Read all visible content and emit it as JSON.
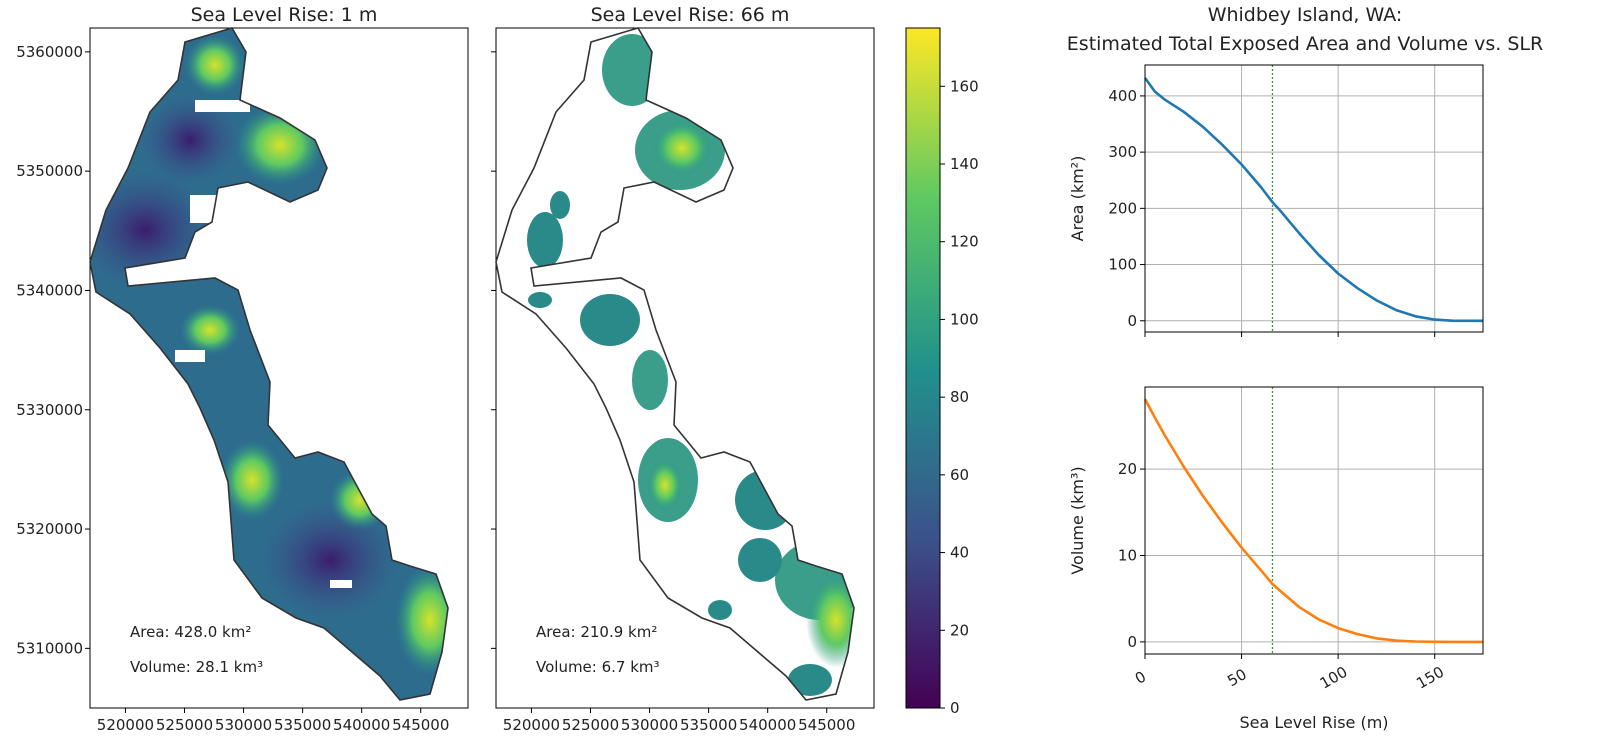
{
  "figure": {
    "map_left": {
      "title": "Sea Level Rise: 1 m",
      "annotation_area": "Area: 428.0 km²",
      "annotation_volume": "Volume: 28.1 km³"
    },
    "map_right": {
      "title": "Sea Level Rise: 66 m",
      "annotation_area": "Area: 210.9 km²",
      "annotation_volume": "Volume: 6.7 km³"
    },
    "map_x_ticks": [
      "520000",
      "525000",
      "530000",
      "535000",
      "540000",
      "545000"
    ],
    "map_y_ticks": [
      "5310000",
      "5320000",
      "5330000",
      "5340000",
      "5350000",
      "5360000"
    ],
    "colorbar": {
      "ticks": [
        "0",
        "20",
        "40",
        "60",
        "80",
        "100",
        "120",
        "140",
        "160"
      ],
      "min": 0,
      "max": 175,
      "colormap": "viridis",
      "colors": [
        "#440154",
        "#3b528b",
        "#21918c",
        "#5ec962",
        "#fde725"
      ]
    },
    "right_title_line1": "Whidbey Island, WA:",
    "right_title_line2": "Estimated Total Exposed Area and Volume vs. SLR"
  },
  "chart_data": [
    {
      "type": "line",
      "x": [
        0,
        5,
        10,
        20,
        30,
        40,
        50,
        60,
        66,
        70,
        80,
        90,
        100,
        110,
        120,
        130,
        140,
        150,
        160,
        170,
        175
      ],
      "series": [
        {
          "values": [
            432,
            408,
            394,
            372,
            345,
            313,
            278,
            238,
            211,
            196,
            155,
            117,
            84,
            58,
            36,
            19,
            8,
            2,
            0,
            0,
            0
          ],
          "color": "#1f77b4"
        }
      ],
      "ylabel": "Area (km²)",
      "y_ticks": [
        "0",
        "100",
        "200",
        "300",
        "400"
      ],
      "ylim": [
        -20,
        455
      ],
      "xlim": [
        0,
        175
      ],
      "vline_x": 66,
      "vline_color": "#2ca02c",
      "grid": true
    },
    {
      "type": "line",
      "x": [
        0,
        5,
        10,
        20,
        30,
        40,
        50,
        60,
        66,
        70,
        80,
        90,
        100,
        110,
        120,
        130,
        140,
        150,
        160,
        170,
        175
      ],
      "series": [
        {
          "values": [
            28.1,
            26.0,
            24.0,
            20.3,
            16.9,
            13.8,
            10.9,
            8.3,
            6.7,
            5.9,
            4.0,
            2.6,
            1.6,
            0.9,
            0.4,
            0.15,
            0.05,
            0.01,
            0,
            0,
            0
          ],
          "color": "#ff7f0e"
        }
      ],
      "xlabel": "Sea Level Rise (m)",
      "ylabel": "Volume (km³)",
      "x_ticks": [
        "0",
        "50",
        "100",
        "150"
      ],
      "y_ticks": [
        "0",
        "10",
        "20"
      ],
      "ylim": [
        -1.4,
        29.5
      ],
      "xlim": [
        0,
        175
      ],
      "vline_x": 66,
      "vline_color": "#2ca02c",
      "grid": true
    }
  ]
}
